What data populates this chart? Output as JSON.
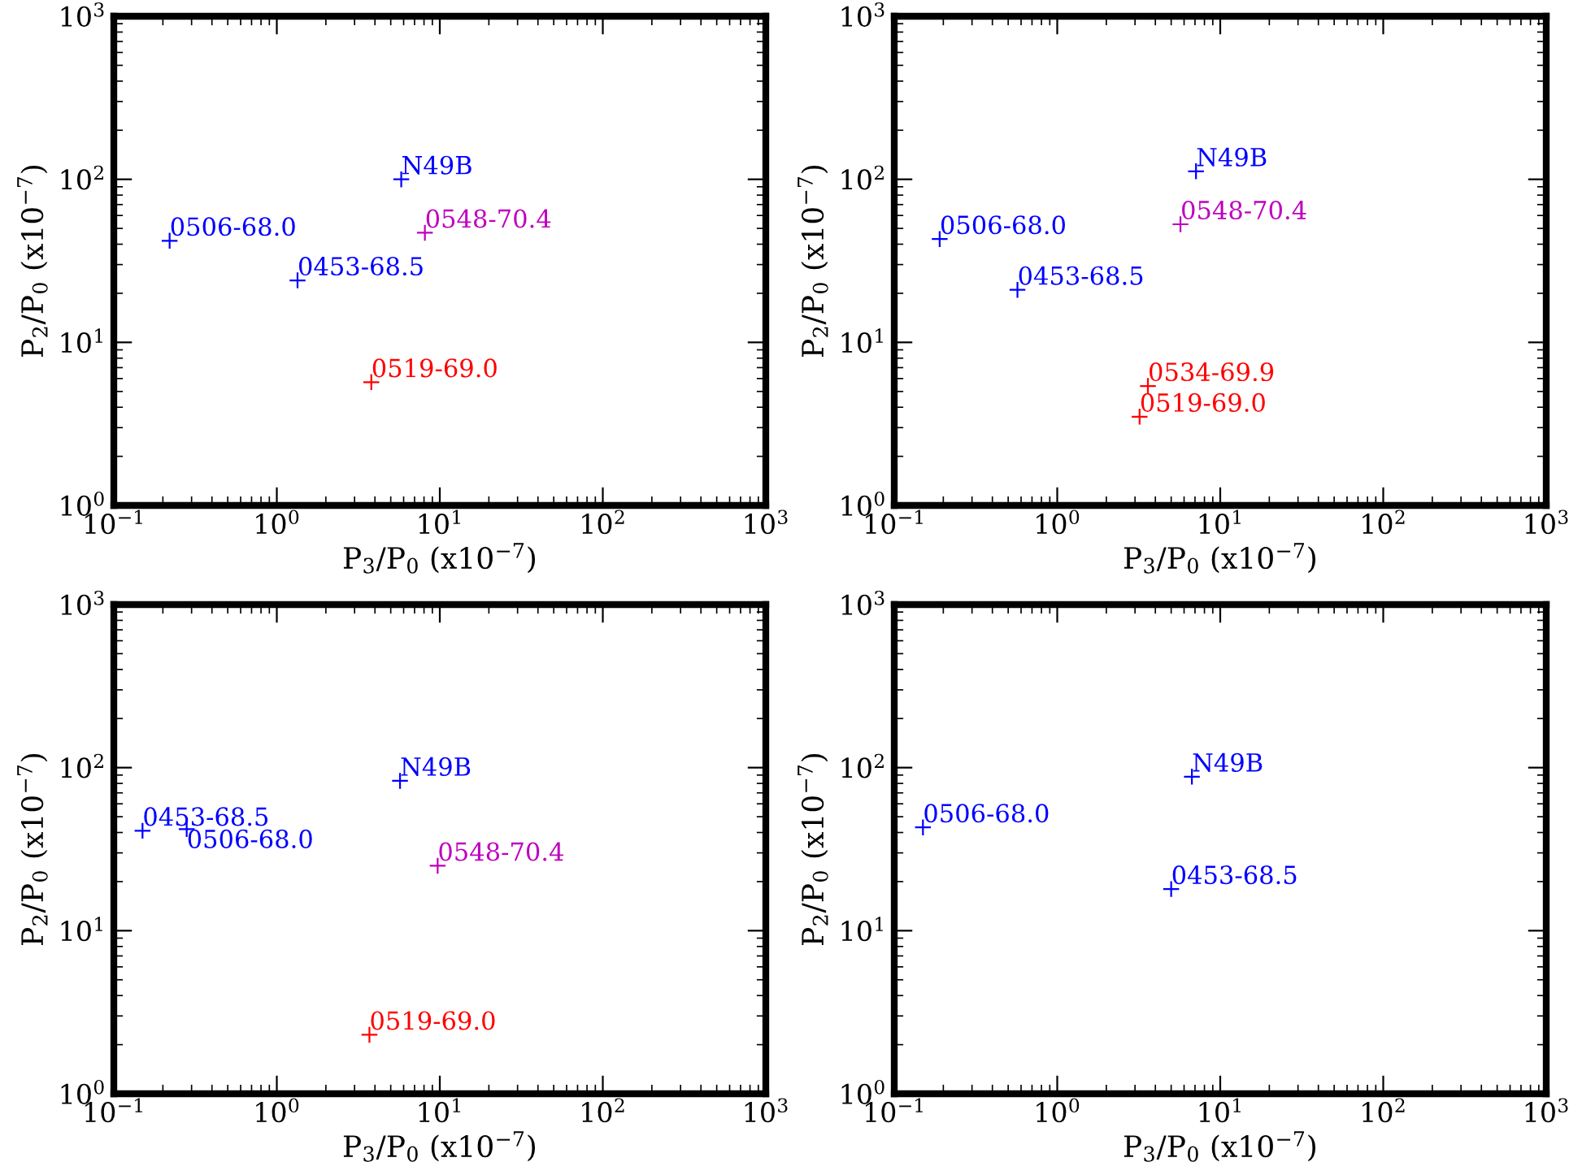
{
  "chart_data": [
    {
      "type": "scatter",
      "xlabel": "P$_{3}$/P$_{0}$ (x10$^{−7}$)",
      "ylabel": "P$_{2}$/P$_{0}$ (x10$^{−7}$)",
      "log": "xy",
      "marker": "cross",
      "grid": false,
      "legend": false,
      "xlim": [
        0.1,
        1000
      ],
      "ylim": [
        1,
        1000
      ],
      "xticks": [
        {
          "value": 0.1,
          "label": "10$^{−1}$"
        },
        {
          "value": 1,
          "label": "10$^{0}$"
        },
        {
          "value": 10,
          "label": "10$^{1}$"
        },
        {
          "value": 100,
          "label": "10$^{2}$"
        },
        {
          "value": 1000,
          "label": "10$^{3}$"
        }
      ],
      "yticks": [
        {
          "value": 1,
          "label": "10$^{0}$"
        },
        {
          "value": 10,
          "label": "10$^{1}$"
        },
        {
          "value": 100,
          "label": "10$^{2}$"
        },
        {
          "value": 1000,
          "label": "10$^{3}$"
        }
      ],
      "series": [
        {
          "name": "N49B",
          "color": "#0000ff",
          "x": [
            5.8
          ],
          "values": [
            100
          ]
        },
        {
          "name": "0506-68.0",
          "color": "#0000ff",
          "x": [
            0.22
          ],
          "values": [
            42
          ]
        },
        {
          "name": "0453-68.5",
          "color": "#0000ff",
          "x": [
            1.34
          ],
          "values": [
            24
          ]
        },
        {
          "name": "0548-70.4",
          "color": "#bf00bf",
          "x": [
            8.1
          ],
          "values": [
            47
          ]
        },
        {
          "name": "0519-69.0",
          "color": "#ff0000",
          "x": [
            3.8
          ],
          "values": [
            5.7
          ]
        }
      ]
    },
    {
      "type": "scatter",
      "xlabel": "P$_{3}$/P$_{0}$ (x10$^{−7}$)",
      "ylabel": "P$_{2}$/P$_{0}$ (x10$^{−7}$)",
      "log": "xy",
      "marker": "cross",
      "grid": false,
      "legend": false,
      "xlim": [
        0.1,
        1000
      ],
      "ylim": [
        1,
        1000
      ],
      "xticks": [
        {
          "value": 0.1,
          "label": "10$^{−1}$"
        },
        {
          "value": 1,
          "label": "10$^{0}$"
        },
        {
          "value": 10,
          "label": "10$^{1}$"
        },
        {
          "value": 100,
          "label": "10$^{2}$"
        },
        {
          "value": 1000,
          "label": "10$^{3}$"
        }
      ],
      "yticks": [
        {
          "value": 1,
          "label": "10$^{0}$"
        },
        {
          "value": 10,
          "label": "10$^{1}$"
        },
        {
          "value": 100,
          "label": "10$^{2}$"
        },
        {
          "value": 1000,
          "label": "10$^{3}$"
        }
      ],
      "series": [
        {
          "name": "N49B",
          "color": "#0000ff",
          "x": [
            7.1
          ],
          "values": [
            112
          ]
        },
        {
          "name": "0506-68.0",
          "color": "#0000ff",
          "x": [
            0.19
          ],
          "values": [
            43
          ]
        },
        {
          "name": "0453-68.5",
          "color": "#0000ff",
          "x": [
            0.57
          ],
          "values": [
            21
          ]
        },
        {
          "name": "0548-70.4",
          "color": "#bf00bf",
          "x": [
            5.7
          ],
          "values": [
            53
          ]
        },
        {
          "name": "0534-69.9",
          "color": "#ff0000",
          "x": [
            3.6
          ],
          "values": [
            5.4
          ]
        },
        {
          "name": "0519-69.0",
          "color": "#ff0000",
          "x": [
            3.2
          ],
          "values": [
            3.5
          ]
        }
      ]
    },
    {
      "type": "scatter",
      "xlabel": "P$_{3}$/P$_{0}$ (x10$^{−7}$)",
      "ylabel": "P$_{2}$/P$_{0}$ (x10$^{−7}$)",
      "log": "xy",
      "marker": "cross",
      "grid": false,
      "legend": false,
      "xlim": [
        0.1,
        1000
      ],
      "ylim": [
        1,
        1000
      ],
      "xticks": [
        {
          "value": 0.1,
          "label": "10$^{−1}$"
        },
        {
          "value": 1,
          "label": "10$^{0}$"
        },
        {
          "value": 10,
          "label": "10$^{1}$"
        },
        {
          "value": 100,
          "label": "10$^{2}$"
        },
        {
          "value": 1000,
          "label": "10$^{3}$"
        }
      ],
      "yticks": [
        {
          "value": 1,
          "label": "10$^{0}$"
        },
        {
          "value": 10,
          "label": "10$^{1}$"
        },
        {
          "value": 100,
          "label": "10$^{2}$"
        },
        {
          "value": 1000,
          "label": "10$^{3}$"
        }
      ],
      "series": [
        {
          "name": "N49B",
          "color": "#0000ff",
          "x": [
            5.7
          ],
          "values": [
            83
          ]
        },
        {
          "name": "0453-68.5",
          "color": "#0000ff",
          "x": [
            0.15
          ],
          "values": [
            41
          ]
        },
        {
          "name": "0506-68.0",
          "color": "#0000ff",
          "x": [
            0.28
          ],
          "values": [
            42
          ]
        },
        {
          "name": "0548-70.4",
          "color": "#bf00bf",
          "x": [
            9.7
          ],
          "values": [
            25
          ]
        },
        {
          "name": "0519-69.0",
          "color": "#ff0000",
          "x": [
            3.7
          ],
          "values": [
            2.3
          ]
        }
      ]
    },
    {
      "type": "scatter",
      "xlabel": "P$_{3}$/P$_{0}$ (x10$^{−7}$)",
      "ylabel": "P$_{2}$/P$_{0}$ (x10$^{−7}$)",
      "log": "xy",
      "marker": "cross",
      "grid": false,
      "legend": false,
      "xlim": [
        0.1,
        1000
      ],
      "ylim": [
        1,
        1000
      ],
      "xticks": [
        {
          "value": 0.1,
          "label": "10$^{−1}$"
        },
        {
          "value": 1,
          "label": "10$^{0}$"
        },
        {
          "value": 10,
          "label": "10$^{1}$"
        },
        {
          "value": 100,
          "label": "10$^{2}$"
        },
        {
          "value": 1000,
          "label": "10$^{3}$"
        }
      ],
      "yticks": [
        {
          "value": 1,
          "label": "10$^{0}$"
        },
        {
          "value": 10,
          "label": "10$^{1}$"
        },
        {
          "value": 100,
          "label": "10$^{2}$"
        },
        {
          "value": 1000,
          "label": "10$^{3}$"
        }
      ],
      "series": [
        {
          "name": "N49B",
          "color": "#0000ff",
          "x": [
            6.7
          ],
          "values": [
            88
          ]
        },
        {
          "name": "0506-68.0",
          "color": "#0000ff",
          "x": [
            0.15
          ],
          "values": [
            43
          ]
        },
        {
          "name": "0453-68.5",
          "color": "#0000ff",
          "x": [
            5.0
          ],
          "values": [
            18
          ]
        }
      ]
    }
  ]
}
